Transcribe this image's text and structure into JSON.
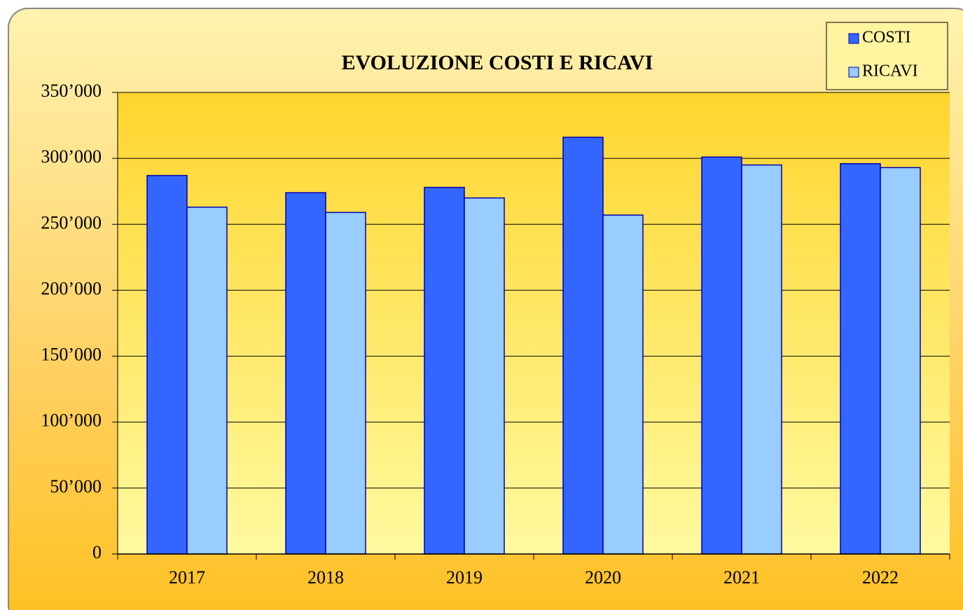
{
  "chart_data": {
    "type": "bar",
    "title": "EVOLUZIONE COSTI E RICAVI",
    "categories": [
      "2017",
      "2018",
      "2019",
      "2020",
      "2021",
      "2022"
    ],
    "series": [
      {
        "name": "COSTI",
        "color": "#3366ff",
        "values": [
          287000,
          274000,
          278000,
          316000,
          301000,
          296000
        ]
      },
      {
        "name": "RICAVI",
        "color": "#99ccff",
        "values": [
          263000,
          259000,
          270000,
          257000,
          295000,
          293000
        ]
      }
    ],
    "ylim": [
      0,
      350000
    ],
    "yticks": [
      0,
      {
        "value": 50000,
        "label": "50’000"
      },
      {
        "value": 100000,
        "label": "100’000"
      },
      {
        "value": 150000,
        "label": "150’000"
      },
      {
        "value": 200000,
        "label": "200’000"
      },
      {
        "value": 250000,
        "label": "250’000"
      },
      {
        "value": 300000,
        "label": "300’000"
      },
      {
        "value": 350000,
        "label": "350’000"
      }
    ],
    "grid": true,
    "legend": "top-right"
  }
}
